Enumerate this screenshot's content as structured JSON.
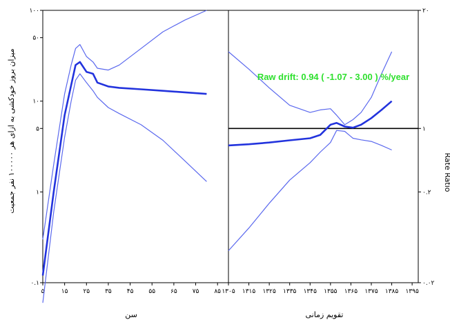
{
  "chart_data": [
    {
      "type": "line",
      "panel": "left",
      "xlabel": "سن",
      "ylabel": "میزان بروز خودکشی به ازای هر ۱۰۰۰۰۰ نفر جمعیت",
      "x_ticks": [
        "۵",
        "۱۵",
        "۲۵",
        "۳۵",
        "۴۵",
        "۵۵",
        "۶۵",
        "۷۵",
        "۸۵"
      ],
      "x_tick_values": [
        5,
        15,
        25,
        35,
        45,
        55,
        65,
        75,
        85
      ],
      "xlim": [
        5,
        90
      ],
      "y_scale": "log",
      "ylim": [
        0.1,
        100
      ],
      "y_ticks": [
        "۱۰۰",
        "۵۰",
        "۱۰",
        "۵",
        "۱",
        "۰.۱"
      ],
      "y_tick_values": [
        100,
        50,
        10,
        5,
        1,
        0.1
      ],
      "x": [
        5,
        10,
        15,
        18,
        20,
        22,
        25,
        28,
        30,
        35,
        40,
        50,
        60,
        70,
        80
      ],
      "series": [
        {
          "role": "estimate",
          "color": "#2233dd",
          "values": [
            0.12,
            1.0,
            7.0,
            15.0,
            25.0,
            27.0,
            21.0,
            20.0,
            16.0,
            14.5,
            14.0,
            13.5,
            13.0,
            12.5,
            12.0
          ]
        },
        {
          "role": "upper",
          "color": "#5a68ee",
          "values": [
            0.3,
            2.0,
            12.0,
            25.0,
            38.0,
            42.0,
            31.0,
            27.0,
            23.0,
            22.0,
            25.0,
            38.0,
            58.0,
            78.0,
            100.0
          ]
        },
        {
          "role": "lower",
          "color": "#5a68ee",
          "values": [
            0.06,
            0.6,
            4.0,
            10.0,
            17.0,
            20.0,
            16.0,
            13.0,
            11.0,
            8.5,
            7.3,
            5.5,
            3.7,
            2.2,
            1.3
          ]
        }
      ]
    },
    {
      "type": "line",
      "panel": "right",
      "xlabel": "تقویم زمانی",
      "ylabel": "Rate Ratio",
      "annotation": "Raw drift: 0.94 ( -1.07 - 3.00 ) %/year",
      "x_ticks": [
        "۱۳۰۵",
        "۱۳۱۵",
        "۱۳۲۵",
        "۱۳۳۵",
        "۱۳۴۵",
        "۱۳۵۵",
        "۱۳۶۵",
        "۱۳۷۵",
        "۱۳۸۵",
        "۱۳۹۵"
      ],
      "x_tick_values": [
        1305,
        1315,
        1325,
        1335,
        1345,
        1355,
        1365,
        1375,
        1385,
        1395
      ],
      "xlim": [
        1305,
        1398
      ],
      "y_scale": "log",
      "ylim": [
        0.02,
        20
      ],
      "y_ticks": [
        "۲۰",
        "۱",
        "۰.۲",
        "۰.۰۲"
      ],
      "y_tick_values": [
        20,
        1,
        0.2,
        0.02
      ],
      "reference_line": 1,
      "x": [
        1305,
        1315,
        1325,
        1335,
        1345,
        1350,
        1355,
        1358,
        1362,
        1366,
        1370,
        1375,
        1380,
        1385
      ],
      "series": [
        {
          "role": "estimate",
          "color": "#2233dd",
          "values": [
            0.65,
            0.67,
            0.7,
            0.74,
            0.78,
            0.85,
            1.1,
            1.15,
            1.05,
            1.02,
            1.1,
            1.3,
            1.6,
            2.0
          ]
        },
        {
          "role": "upper",
          "color": "#5a68ee",
          "values": [
            7.0,
            4.5,
            2.8,
            1.8,
            1.5,
            1.6,
            1.65,
            1.4,
            1.1,
            1.25,
            1.5,
            2.2,
            4.0,
            7.0
          ]
        },
        {
          "role": "lower",
          "color": "#5a68ee",
          "values": [
            0.045,
            0.08,
            0.15,
            0.27,
            0.42,
            0.55,
            0.7,
            0.95,
            0.93,
            0.78,
            0.75,
            0.72,
            0.65,
            0.58
          ]
        }
      ]
    }
  ]
}
